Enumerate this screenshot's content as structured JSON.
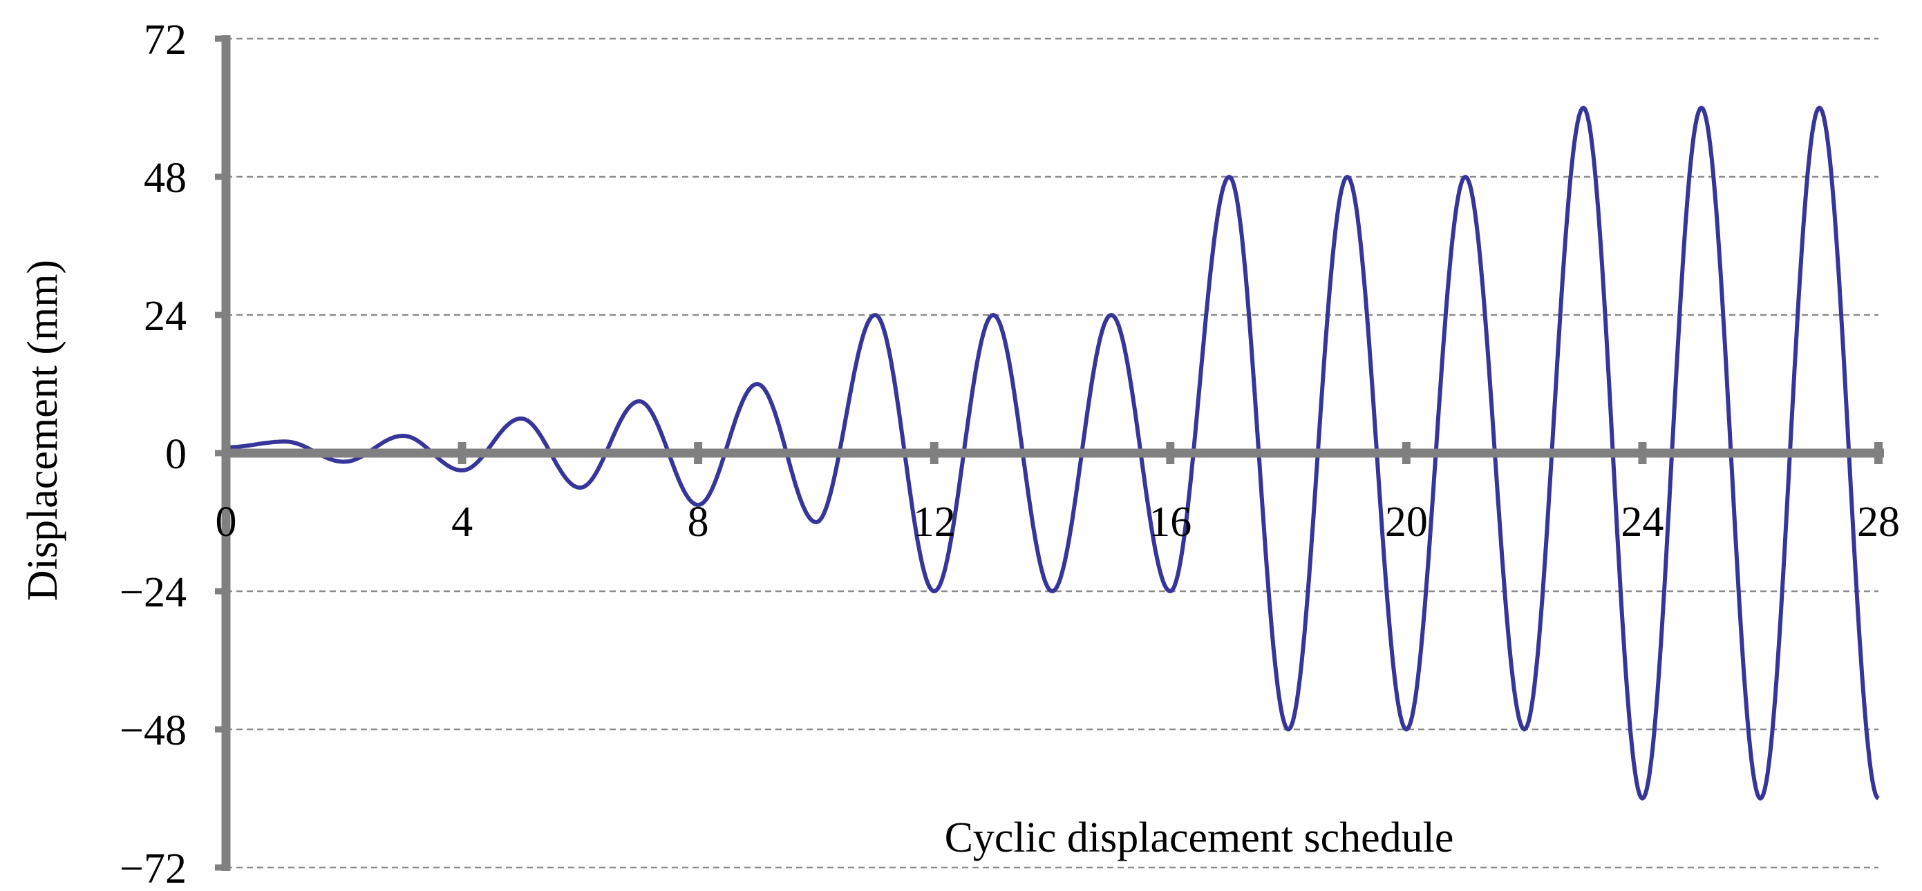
{
  "chart_data": {
    "type": "line",
    "title": "",
    "xlabel": "Cyclic displacement schedule",
    "ylabel": "Displacement (mm)",
    "xlim": [
      0,
      28
    ],
    "ylim": [
      -72,
      72
    ],
    "x_ticks": [
      0,
      4,
      8,
      12,
      16,
      20,
      24,
      28
    ],
    "x_tick_labels": [
      "0",
      "4",
      "8",
      "12",
      "16",
      "20",
      "24",
      "28"
    ],
    "y_ticks": [
      72,
      48,
      24,
      0,
      -24,
      -48,
      -72
    ],
    "y_tick_labels": [
      "72",
      "48",
      "24",
      "0",
      "−24",
      "−48",
      "−72"
    ],
    "grid": {
      "y_major": true,
      "style": "dashed"
    },
    "colors": {
      "series": "#36369a",
      "axis": "#808080",
      "grid": "#8c8c8c"
    },
    "series": [
      {
        "x": [
          0,
          1,
          2,
          3,
          4,
          5,
          6,
          7,
          8,
          9,
          10,
          11,
          12,
          13,
          14,
          15,
          16,
          17,
          18,
          19,
          20,
          21,
          22,
          23,
          24,
          25,
          26,
          27,
          28
        ],
        "y": [
          1,
          2,
          -1.5,
          3,
          -3,
          6,
          -6,
          9,
          -9,
          12,
          -12,
          24,
          -24,
          24,
          -24,
          24,
          -24,
          48,
          -48,
          48,
          -48,
          48,
          -48,
          60,
          -60,
          60,
          -60,
          60,
          -60
        ]
      }
    ]
  }
}
